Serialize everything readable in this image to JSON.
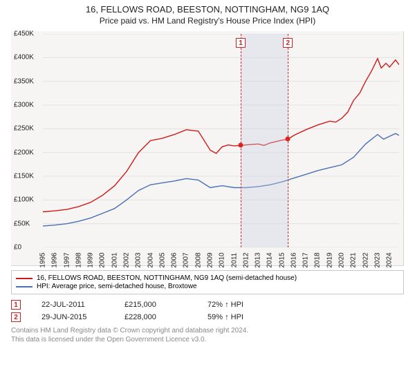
{
  "title": "16, FELLOWS ROAD, BEESTON, NOTTINGHAM, NG9 1AQ",
  "subtitle": "Price paid vs. HM Land Registry's House Price Index (HPI)",
  "chart": {
    "type": "line",
    "background_color": "#f6f5f3",
    "grid_color": "#e4e2de",
    "y": {
      "min": 0,
      "max": 450000,
      "step": 50000,
      "ticks": [
        "£0",
        "£50K",
        "£100K",
        "£150K",
        "£200K",
        "£250K",
        "£300K",
        "£350K",
        "£400K",
        "£450K"
      ]
    },
    "x": {
      "min": 1995,
      "max": 2024.8,
      "ticks": [
        1995,
        1996,
        1997,
        1998,
        1999,
        2000,
        2001,
        2002,
        2003,
        2004,
        2005,
        2006,
        2007,
        2008,
        2009,
        2010,
        2011,
        2012,
        2013,
        2014,
        2015,
        2016,
        2017,
        2018,
        2019,
        2020,
        2021,
        2022,
        2023,
        2024
      ]
    },
    "shaded_range": {
      "from": 2011.55,
      "to": 2015.5
    },
    "vlines": [
      2011.55,
      2015.5
    ],
    "markers": [
      {
        "label": "1",
        "x": 2011.55,
        "y": 215000
      },
      {
        "label": "2",
        "x": 2015.5,
        "y": 228000
      }
    ],
    "series": [
      {
        "name": "16, FELLOWS ROAD, BEESTON, NOTTINGHAM, NG9 1AQ (semi-detached house)",
        "color": "#d11919",
        "line_width": 1.4,
        "points": [
          [
            1995,
            75000
          ],
          [
            1996,
            77000
          ],
          [
            1997,
            80000
          ],
          [
            1998,
            86000
          ],
          [
            1999,
            95000
          ],
          [
            2000,
            110000
          ],
          [
            2001,
            130000
          ],
          [
            2002,
            160000
          ],
          [
            2003,
            200000
          ],
          [
            2004,
            225000
          ],
          [
            2005,
            230000
          ],
          [
            2006,
            238000
          ],
          [
            2007,
            248000
          ],
          [
            2008,
            245000
          ],
          [
            2009,
            205000
          ],
          [
            2009.5,
            198000
          ],
          [
            2010,
            212000
          ],
          [
            2010.5,
            216000
          ],
          [
            2011,
            214000
          ],
          [
            2011.55,
            215000
          ],
          [
            2012,
            216000
          ],
          [
            2013,
            218000
          ],
          [
            2013.5,
            215000
          ],
          [
            2014,
            220000
          ],
          [
            2015,
            226000
          ],
          [
            2015.5,
            228000
          ],
          [
            2016,
            236000
          ],
          [
            2017,
            248000
          ],
          [
            2018,
            258000
          ],
          [
            2018.5,
            262000
          ],
          [
            2019,
            266000
          ],
          [
            2019.5,
            264000
          ],
          [
            2020,
            272000
          ],
          [
            2020.5,
            285000
          ],
          [
            2021,
            310000
          ],
          [
            2021.5,
            325000
          ],
          [
            2022,
            350000
          ],
          [
            2022.5,
            372000
          ],
          [
            2023,
            398000
          ],
          [
            2023.3,
            378000
          ],
          [
            2023.7,
            388000
          ],
          [
            2024,
            380000
          ],
          [
            2024.5,
            395000
          ],
          [
            2024.8,
            385000
          ]
        ]
      },
      {
        "name": "HPI: Average price, semi-detached house, Broxtowe",
        "color": "#4a6fb3",
        "line_width": 1.4,
        "points": [
          [
            1995,
            45000
          ],
          [
            1996,
            47000
          ],
          [
            1997,
            50000
          ],
          [
            1998,
            55000
          ],
          [
            1999,
            62000
          ],
          [
            2000,
            72000
          ],
          [
            2001,
            82000
          ],
          [
            2002,
            100000
          ],
          [
            2003,
            120000
          ],
          [
            2004,
            132000
          ],
          [
            2005,
            136000
          ],
          [
            2006,
            140000
          ],
          [
            2007,
            145000
          ],
          [
            2008,
            142000
          ],
          [
            2009,
            126000
          ],
          [
            2010,
            130000
          ],
          [
            2011,
            126000
          ],
          [
            2012,
            126000
          ],
          [
            2013,
            128000
          ],
          [
            2014,
            132000
          ],
          [
            2015,
            138000
          ],
          [
            2016,
            146000
          ],
          [
            2017,
            154000
          ],
          [
            2018,
            162000
          ],
          [
            2019,
            168000
          ],
          [
            2020,
            174000
          ],
          [
            2021,
            190000
          ],
          [
            2022,
            218000
          ],
          [
            2022.7,
            232000
          ],
          [
            2023,
            238000
          ],
          [
            2023.5,
            228000
          ],
          [
            2024,
            234000
          ],
          [
            2024.5,
            240000
          ],
          [
            2024.8,
            236000
          ]
        ]
      }
    ]
  },
  "legend": {
    "series1": "16, FELLOWS ROAD, BEESTON, NOTTINGHAM, NG9 1AQ (semi-detached house)",
    "series2": "HPI: Average price, semi-detached house, Broxtowe"
  },
  "transactions": [
    {
      "num": "1",
      "date": "22-JUL-2011",
      "price": "£215,000",
      "hpi": "72% ↑ HPI"
    },
    {
      "num": "2",
      "date": "29-JUN-2015",
      "price": "£228,000",
      "hpi": "59% ↑ HPI"
    }
  ],
  "footer": {
    "line1": "Contains HM Land Registry data © Crown copyright and database right 2024.",
    "line2": "This data is licensed under the Open Government Licence v3.0."
  }
}
